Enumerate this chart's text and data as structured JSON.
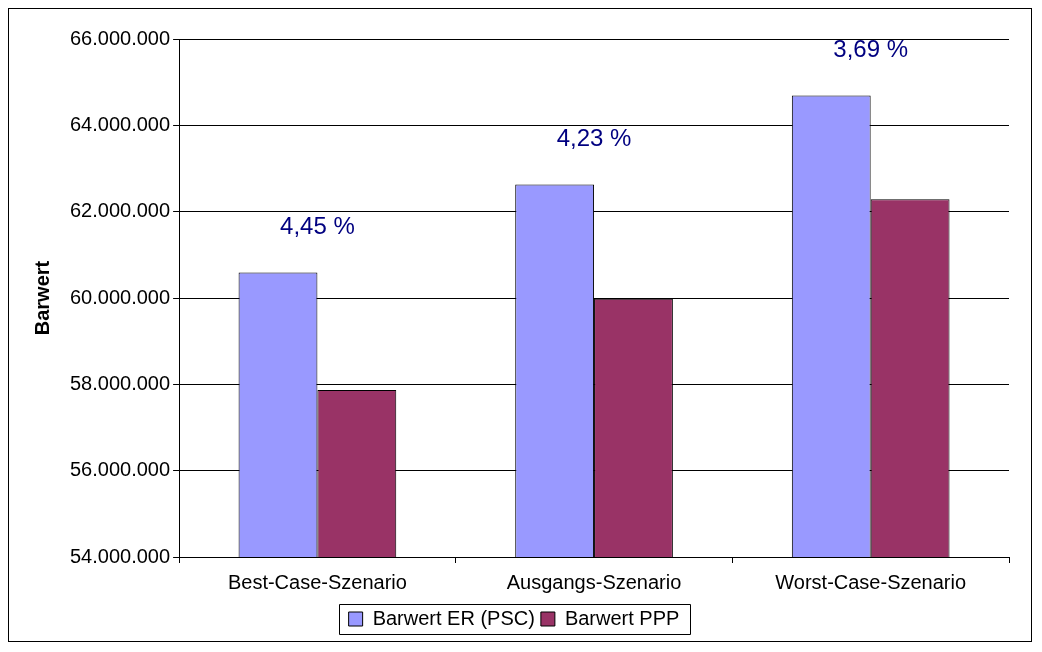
{
  "chart_data": {
    "type": "bar",
    "ylabel": "Barwert",
    "categories": [
      "Best-Case-Szenario",
      "Ausgangs-Szenario",
      "Worst-Case-Szenario"
    ],
    "series": [
      {
        "name": "Barwert ER (PSC)",
        "color": "#9999ff",
        "values": [
          60590000,
          62630000,
          64690000
        ]
      },
      {
        "name": "Barwert PPP",
        "color": "#993366",
        "values": [
          57870000,
          59980000,
          62290000
        ]
      }
    ],
    "ylim": [
      54000000,
      66000000
    ],
    "yticks": [
      {
        "value": 54000000,
        "label": "54.000.000"
      },
      {
        "value": 56000000,
        "label": "56.000.000"
      },
      {
        "value": 58000000,
        "label": "58.000.000"
      },
      {
        "value": 60000000,
        "label": "60.000.000"
      },
      {
        "value": 62000000,
        "label": "62.000.000"
      },
      {
        "value": 64000000,
        "label": "64.000.000"
      },
      {
        "value": 66000000,
        "label": "66.000.000"
      }
    ],
    "annotations": [
      "4,45 %",
      "4,23 %",
      "3,69 %"
    ],
    "grid": "y",
    "legend": "bottom"
  }
}
